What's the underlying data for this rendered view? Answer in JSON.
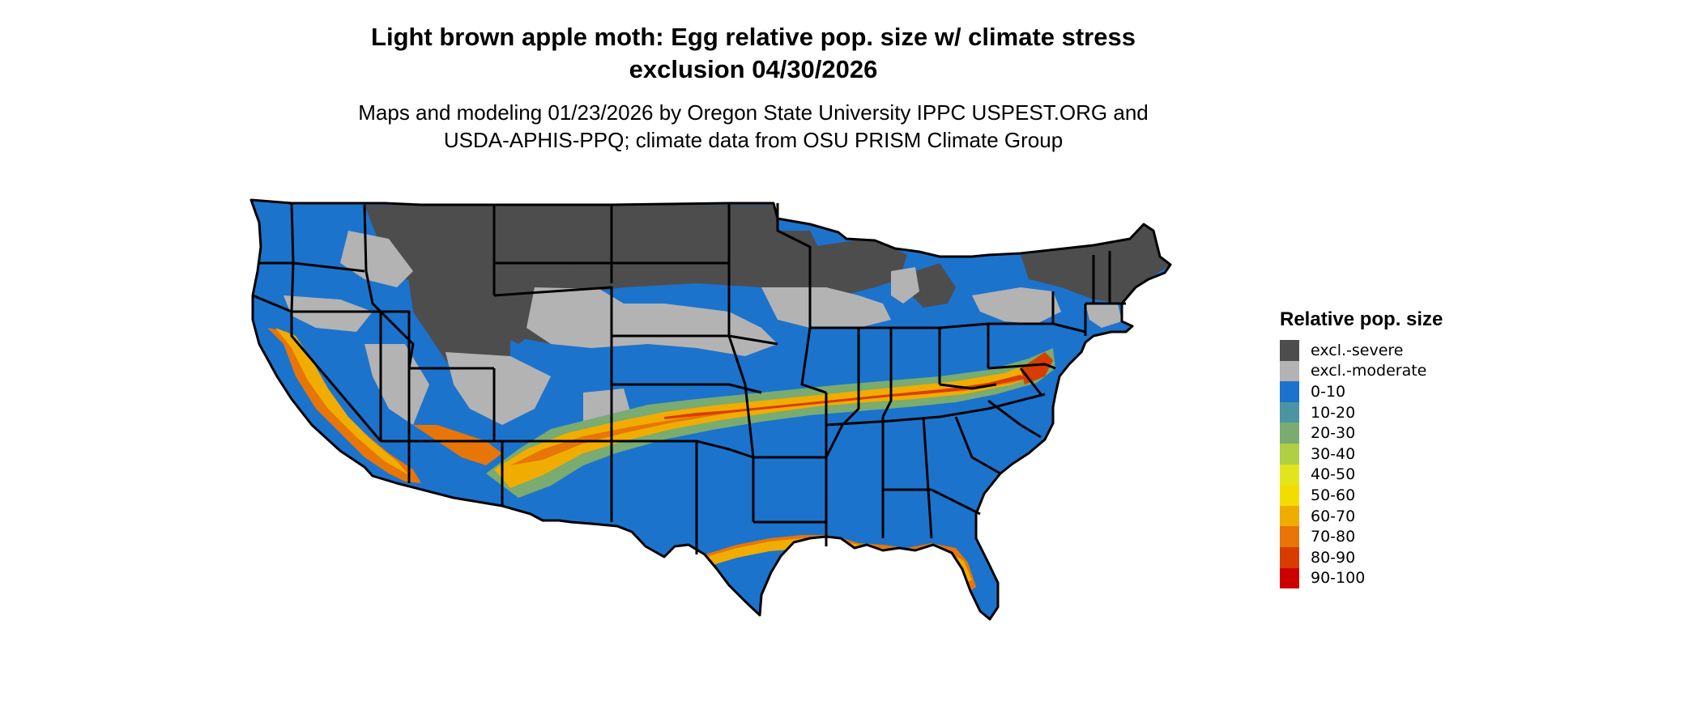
{
  "title": {
    "line1": "Light brown apple moth: Egg relative pop. size w/ climate stress",
    "line2": "exclusion 04/30/2026"
  },
  "subtitle": {
    "line1": "Maps and modeling 01/23/2026 by Oregon State University IPPC USPEST.ORG and",
    "line2": "USDA-APHIS-PPQ; climate data from OSU PRISM Climate Group"
  },
  "legend": {
    "title": "Relative pop. size",
    "items": [
      {
        "label": "excl.-severe",
        "color": "#4d4d4d"
      },
      {
        "label": "excl.-moderate",
        "color": "#b3b3b3"
      },
      {
        "label": "0-10",
        "color": "#1c73cc"
      },
      {
        "label": "10-20",
        "color": "#4a94a4"
      },
      {
        "label": "20-30",
        "color": "#7aab70"
      },
      {
        "label": "30-40",
        "color": "#b0cf45"
      },
      {
        "label": "40-50",
        "color": "#e2e51e"
      },
      {
        "label": "50-60",
        "color": "#f5dc00"
      },
      {
        "label": "60-70",
        "color": "#f0ad00"
      },
      {
        "label": "70-80",
        "color": "#e77508"
      },
      {
        "label": "80-90",
        "color": "#d93c00"
      },
      {
        "label": "90-100",
        "color": "#cc0000"
      }
    ]
  }
}
